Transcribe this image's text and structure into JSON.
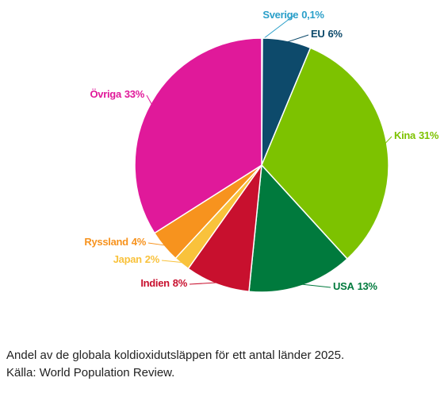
{
  "chart_data": {
    "type": "pie",
    "categories": [
      "Sverige",
      "EU",
      "Kina",
      "USA",
      "Indien",
      "Japan",
      "Ryssland",
      "Övriga"
    ],
    "values": [
      0.1,
      6,
      31,
      13,
      8,
      2,
      4,
      33
    ],
    "value_labels": [
      "0,1%",
      "6%",
      "31%",
      "13%",
      "8%",
      "2%",
      "4%",
      "33%"
    ],
    "colors": [
      "#2a9fc9",
      "#0d4a6b",
      "#7dc200",
      "#007a3d",
      "#c8102e",
      "#f9c23c",
      "#f7931e",
      "#e0199a"
    ],
    "caption": "Andel av de globala koldioxidutsläppen för ett antal länder 2025.",
    "source": "Källa: World Population Review."
  }
}
